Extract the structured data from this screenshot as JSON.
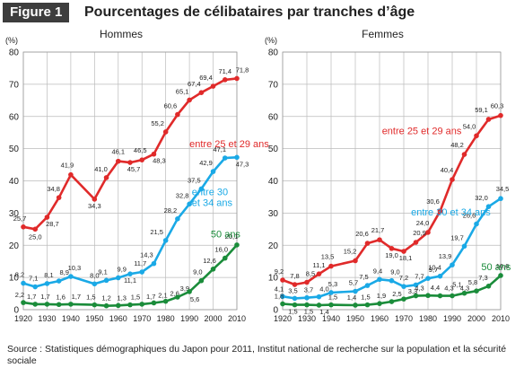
{
  "header": {
    "figure_label": "Figure 1",
    "title": "Pourcentages de célibataires par tranches d’âge"
  },
  "source": "Source : Statistiques démographiques du Japon pour 2011, Institut national de recherche sur la population et la sécurité sociale",
  "colors": {
    "red": "#e02a2a",
    "blue": "#1aa9e6",
    "green": "#1a8c3a",
    "grid": "#bbbbbb"
  },
  "chart_data": [
    {
      "type": "line",
      "title": "Hommes",
      "ylabel": "(%)",
      "ylim": [
        0,
        80
      ],
      "yticks": [
        0,
        10,
        20,
        30,
        40,
        50,
        60,
        70,
        80
      ],
      "xlim": [
        1920,
        2010
      ],
      "xticks": [
        1920,
        1930,
        1940,
        1950,
        1960,
        1970,
        1980,
        1990,
        2000,
        2010
      ],
      "grid": true,
      "series": [
        {
          "name": "entre 25 et 29 ans",
          "color": "red",
          "x": [
            1920,
            1925,
            1930,
            1935,
            1940,
            1950,
            1955,
            1960,
            1965,
            1970,
            1975,
            1980,
            1985,
            1990,
            1995,
            2000,
            2005,
            2010
          ],
          "values": [
            25.7,
            25.0,
            28.7,
            34.8,
            41.9,
            34.3,
            41.0,
            46.1,
            45.7,
            46.5,
            48.3,
            55.2,
            60.6,
            65.1,
            67.4,
            69.4,
            71.4,
            71.8
          ],
          "labels": [
            "25,7",
            "25,0",
            "28,7",
            "34,8",
            "41,9",
            "34,3",
            "41,0",
            "46,1",
            "45,7",
            "46,5",
            "48,3",
            "55,2",
            "60,6",
            "65,1",
            "67,4",
            "69,4",
            "71,4",
            "71,8"
          ]
        },
        {
          "name": "entre 30 et 34 ans",
          "color": "blue",
          "x": [
            1920,
            1925,
            1930,
            1935,
            1940,
            1950,
            1955,
            1960,
            1965,
            1970,
            1975,
            1980,
            1985,
            1990,
            1995,
            2000,
            2005,
            2010
          ],
          "values": [
            8.2,
            7.1,
            8.1,
            8.9,
            10.3,
            8.0,
            9.1,
            9.9,
            11.1,
            11.7,
            14.3,
            21.5,
            28.2,
            32.8,
            37.5,
            42.9,
            47.1,
            47.3
          ],
          "labels": [
            "8,2",
            "7,1",
            "8,1",
            "8,9",
            "10,3",
            "8,0",
            "9,1",
            "9,9",
            "11,1",
            "11,7",
            "14,3",
            "21,5",
            "28,2",
            "32,8",
            "37,5",
            "42,9",
            "47,1",
            "47,3"
          ]
        },
        {
          "name": "50 ans",
          "color": "green",
          "x": [
            1920,
            1925,
            1930,
            1935,
            1940,
            1950,
            1955,
            1960,
            1965,
            1970,
            1975,
            1980,
            1985,
            1990,
            1995,
            2000,
            2005,
            2010
          ],
          "values": [
            2.2,
            1.7,
            1.7,
            1.6,
            1.7,
            1.5,
            1.2,
            1.3,
            1.5,
            1.7,
            2.1,
            2.6,
            3.9,
            5.6,
            9.0,
            12.6,
            16.0,
            20.1
          ],
          "labels": [
            "2,2",
            "1,7",
            "1,7",
            "1,6",
            "1,7",
            "1,5",
            "1,2",
            "1,3",
            "1,5",
            "1,7",
            "2,1",
            "2,6",
            "3,9",
            "5,6",
            "9,0",
            "12,6",
            "16,0",
            "20,1"
          ]
        }
      ]
    },
    {
      "type": "line",
      "title": "Femmes",
      "ylabel": "(%)",
      "ylim": [
        0,
        80
      ],
      "yticks": [
        0,
        10,
        20,
        30,
        40,
        50,
        60,
        70,
        80
      ],
      "xlim": [
        1920,
        2010
      ],
      "xticks": [
        1920,
        1930,
        1940,
        1950,
        1960,
        1970,
        1980,
        1990,
        2000,
        2010
      ],
      "grid": true,
      "series": [
        {
          "name": "entre 25 et 29 ans",
          "color": "red",
          "x": [
            1920,
            1925,
            1930,
            1935,
            1940,
            1950,
            1955,
            1960,
            1965,
            1970,
            1975,
            1980,
            1985,
            1990,
            1995,
            2000,
            2005,
            2010
          ],
          "values": [
            9.2,
            7.8,
            8.5,
            11.1,
            13.5,
            15.2,
            20.6,
            21.7,
            19.0,
            18.1,
            20.9,
            24.0,
            30.6,
            40.4,
            48.2,
            54.0,
            59.1,
            60.3
          ],
          "labels": [
            "9,2",
            "7,8",
            "8,5",
            "11,1",
            "13,5",
            "15,2",
            "20,6",
            "21,7",
            "19,0",
            "18,1",
            "20,9",
            "24,0",
            "30,6",
            "40,4",
            "48,2",
            "54,0",
            "59,1",
            "60,3"
          ]
        },
        {
          "name": "entre 30 et 34 ans",
          "color": "blue",
          "x": [
            1920,
            1925,
            1930,
            1935,
            1940,
            1950,
            1955,
            1960,
            1965,
            1970,
            1975,
            1980,
            1985,
            1990,
            1995,
            2000,
            2005,
            2010
          ],
          "values": [
            4.1,
            3.5,
            3.7,
            4.0,
            5.3,
            5.7,
            7.5,
            9.4,
            9.0,
            7.2,
            7.7,
            9.7,
            10.4,
            13.9,
            19.7,
            26.6,
            32.0,
            34.5
          ],
          "labels": [
            "4,1",
            "3,5",
            "3,7",
            "4,0",
            "5,3",
            "5,7",
            "7,5",
            "9,4",
            "9,0",
            "7,2",
            "7,7",
            "9,7",
            "10,4",
            "13,9",
            "19,7",
            "26,6",
            "32,0",
            "34,5"
          ]
        },
        {
          "name": "50 ans",
          "color": "green",
          "x": [
            1920,
            1925,
            1930,
            1935,
            1940,
            1950,
            1955,
            1960,
            1965,
            1970,
            1975,
            1980,
            1985,
            1990,
            1995,
            2000,
            2005,
            2010
          ],
          "values": [
            1.8,
            1.5,
            1.5,
            1.4,
            1.5,
            1.4,
            1.5,
            1.9,
            2.5,
            3.3,
            4.3,
            4.4,
            4.3,
            4.3,
            5.1,
            5.8,
            7.3,
            10.6
          ],
          "labels": [
            "1,8",
            "1,5",
            "1,5",
            "1,4",
            "1,5",
            "1,4",
            "1,5",
            "1,9",
            "2,5",
            "3,3",
            "4,3",
            "4,4",
            "4,3",
            "4,3",
            "5,1",
            "5,8",
            "7,3",
            "10,6"
          ]
        }
      ]
    }
  ]
}
